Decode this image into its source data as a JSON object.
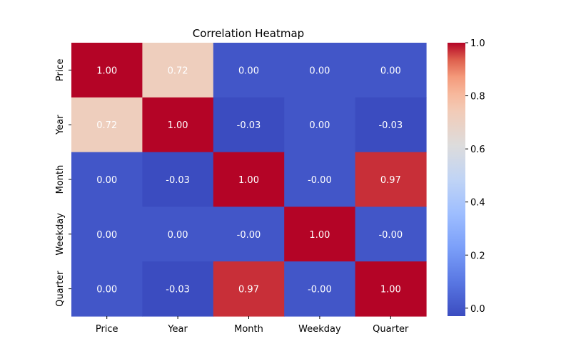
{
  "chart_data": {
    "type": "heatmap",
    "title": "Correlation Heatmap",
    "xlabel": "",
    "ylabel": "",
    "x_categories": [
      "Price",
      "Year",
      "Month",
      "Weekday",
      "Quarter"
    ],
    "y_categories": [
      "Price",
      "Year",
      "Month",
      "Weekday",
      "Quarter"
    ],
    "values": [
      [
        1.0,
        0.72,
        0.0,
        0.0,
        0.0
      ],
      [
        0.72,
        1.0,
        -0.03,
        0.0,
        -0.03
      ],
      [
        0.0,
        -0.03,
        1.0,
        -0.0,
        0.97
      ],
      [
        0.0,
        0.0,
        -0.0,
        1.0,
        -0.0
      ],
      [
        0.0,
        -0.03,
        0.97,
        -0.0,
        1.0
      ]
    ],
    "cell_labels": [
      [
        "1.00",
        "0.72",
        "0.00",
        "0.00",
        "0.00"
      ],
      [
        "0.72",
        "1.00",
        "-0.03",
        "0.00",
        "-0.03"
      ],
      [
        "0.00",
        "-0.03",
        "1.00",
        "-0.00",
        "0.97"
      ],
      [
        "0.00",
        "0.00",
        "-0.00",
        "1.00",
        "-0.00"
      ],
      [
        "0.00",
        "-0.03",
        "0.97",
        "-0.00",
        "1.00"
      ]
    ],
    "colormap": "coolwarm",
    "colorbar": {
      "range": [
        -0.03,
        1.0
      ],
      "ticks": [
        0.0,
        0.2,
        0.4,
        0.6,
        0.8,
        1.0
      ],
      "tick_labels": [
        "0.0",
        "0.2",
        "0.4",
        "0.6",
        "0.8",
        "1.0"
      ]
    },
    "grid": false
  }
}
